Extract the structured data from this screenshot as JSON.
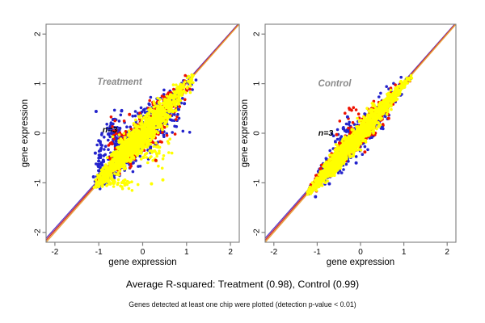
{
  "figure": {
    "caption": "Average R-squared: Treatment (0.98), Control (0.99)",
    "footnote": "Genes detected at least one chip were plotted (detection p-value < 0.01)",
    "background": "#ffffff",
    "colors": {
      "box": "#7f7f7f",
      "tick_text": "#000000",
      "panel_label": "#8a8a8a",
      "identity_gold": "#e8a23c",
      "identity_red": "#d93020",
      "identity_blue": "#6040c8",
      "chip_blue": "#2323cc",
      "chip_red": "#ee1100",
      "chip_yellow": "#ffff00"
    }
  },
  "chart_data": [
    {
      "type": "scatter",
      "title": "Treatment",
      "annotation": "n=3",
      "r_squared": 0.98,
      "xlabel": "gene expression",
      "ylabel": "gene expression",
      "xlim": [
        -2.2,
        2.2
      ],
      "ylim": [
        -2.2,
        2.2
      ],
      "xticks": [
        -2,
        -1,
        0,
        1,
        2
      ],
      "yticks": [
        -2,
        -1,
        0,
        1,
        2
      ],
      "grid": false,
      "identity_line": {
        "slope": 1,
        "intercept": 0
      },
      "n_chips": 3,
      "clusters": [
        {
          "shape": "band",
          "color": "chip_blue",
          "n": 480,
          "seed": 11,
          "t_min": -1.08,
          "t_max": 1.18,
          "spread": 0.4
        },
        {
          "shape": "band",
          "color": "chip_red",
          "n": 400,
          "seed": 12,
          "t_min": -1.06,
          "t_max": 1.18,
          "spread": 0.32
        },
        {
          "shape": "blob",
          "color": "chip_blue",
          "n": 48,
          "seed": 13,
          "cx": -0.95,
          "cy": -0.5,
          "sx": 0.05,
          "sy": 0.28
        },
        {
          "shape": "blob",
          "color": "chip_blue",
          "n": 65,
          "seed": 14,
          "cx": -0.63,
          "cy": 0.0,
          "sx": 0.09,
          "sy": 0.22
        },
        {
          "shape": "blob",
          "color": "chip_red",
          "n": 26,
          "seed": 15,
          "cx": -0.55,
          "cy": -0.05,
          "sx": 0.12,
          "sy": 0.18
        },
        {
          "shape": "blob",
          "color": "chip_blue",
          "n": 24,
          "seed": 16,
          "cx": 0.55,
          "cy": 0.25,
          "sx": 0.2,
          "sy": 0.16
        },
        {
          "shape": "blob",
          "color": "chip_red",
          "n": 20,
          "seed": 17,
          "cx": 0.42,
          "cy": 0.1,
          "sx": 0.22,
          "sy": 0.18
        },
        {
          "shape": "band",
          "color": "chip_yellow",
          "n": 1350,
          "seed": 18,
          "t_min": -1.1,
          "t_max": 1.21,
          "spread": 0.26
        },
        {
          "shape": "blob",
          "color": "chip_yellow",
          "n": 65,
          "seed": 19,
          "cx": 0.1,
          "cy": -0.28,
          "sx": 0.3,
          "sy": 0.2
        },
        {
          "shape": "blob",
          "color": "chip_yellow",
          "n": 50,
          "seed": 20,
          "cx": -0.55,
          "cy": -1.0,
          "sx": 0.2,
          "sy": 0.06
        }
      ],
      "outliers": [
        [
          -1.06,
          0.44,
          "chip_blue"
        ],
        [
          -1.12,
          -0.88,
          "chip_blue"
        ],
        [
          -1.08,
          -0.4,
          "chip_blue"
        ],
        [
          -1.0,
          -0.15,
          "chip_blue"
        ],
        [
          0.46,
          -0.94,
          "chip_yellow"
        ],
        [
          0.2,
          -1.02,
          "chip_yellow"
        ],
        [
          -0.3,
          0.38,
          "chip_red"
        ],
        [
          -0.52,
          0.1,
          "chip_blue"
        ],
        [
          -0.48,
          0.45,
          "chip_blue"
        ],
        [
          0.3,
          -0.55,
          "chip_red"
        ],
        [
          0.82,
          0.48,
          "chip_blue"
        ],
        [
          0.95,
          0.6,
          "chip_blue"
        ]
      ]
    },
    {
      "type": "scatter",
      "title": "Control",
      "annotation": "n=3",
      "r_squared": 0.99,
      "xlabel": "gene expression",
      "ylabel": "gene expression",
      "xlim": [
        -2.2,
        2.2
      ],
      "ylim": [
        -2.2,
        2.2
      ],
      "xticks": [
        -2,
        -1,
        0,
        1,
        2
      ],
      "yticks": [
        -2,
        -1,
        0,
        1,
        2
      ],
      "grid": false,
      "identity_line": {
        "slope": 1,
        "intercept": 0
      },
      "n_chips": 3,
      "clusters": [
        {
          "shape": "band",
          "color": "chip_blue",
          "n": 430,
          "seed": 21,
          "t_min": -1.22,
          "t_max": 1.2,
          "spread": 0.29
        },
        {
          "shape": "band",
          "color": "chip_red",
          "n": 430,
          "seed": 22,
          "t_min": -1.2,
          "t_max": 1.2,
          "spread": 0.24
        },
        {
          "shape": "blob",
          "color": "chip_red",
          "n": 12,
          "seed": 23,
          "cx": -0.28,
          "cy": 0.3,
          "sx": 0.14,
          "sy": 0.12
        },
        {
          "shape": "blob",
          "color": "chip_blue",
          "n": 12,
          "seed": 24,
          "cx": -0.42,
          "cy": 0.12,
          "sx": 0.12,
          "sy": 0.13
        },
        {
          "shape": "band",
          "color": "chip_yellow",
          "n": 1450,
          "seed": 25,
          "t_min": -1.24,
          "t_max": 1.22,
          "spread": 0.185
        }
      ],
      "outliers": [
        [
          -0.25,
          0.48,
          "chip_red"
        ],
        [
          -0.3,
          0.33,
          "chip_blue"
        ],
        [
          -0.55,
          -0.03,
          "chip_red"
        ],
        [
          -1.04,
          -1.28,
          "chip_blue"
        ],
        [
          0.1,
          -0.38,
          "chip_red"
        ],
        [
          0.5,
          0.12,
          "chip_blue"
        ],
        [
          0.65,
          0.3,
          "chip_red"
        ],
        [
          -0.72,
          -1.02,
          "chip_blue"
        ],
        [
          -0.1,
          -0.6,
          "chip_blue"
        ]
      ]
    }
  ]
}
